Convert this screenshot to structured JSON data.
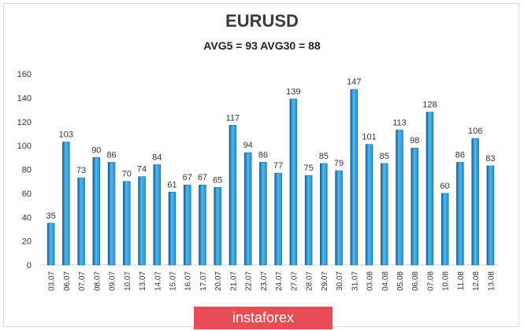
{
  "chart_data": {
    "type": "bar",
    "title": "EURUSD",
    "subtitle": "AVG5 = 93 AVG30 = 88",
    "categories": [
      "03.07",
      "06.07",
      "07.07",
      "08.07",
      "09.07",
      "10.07",
      "13.07",
      "14.07",
      "15.07",
      "16.07",
      "17.07",
      "20.07",
      "21.07",
      "22.07",
      "23.07",
      "24.07",
      "27.07",
      "28.07",
      "29.07",
      "30.07",
      "31.07",
      "03.08",
      "04.08",
      "05.08",
      "06.08",
      "07.08",
      "10.08",
      "11.08",
      "12.08",
      "13.08"
    ],
    "values": [
      35,
      103,
      73,
      90,
      86,
      70,
      74,
      84,
      61,
      67,
      67,
      65,
      117,
      94,
      86,
      77,
      139,
      75,
      85,
      79,
      147,
      101,
      85,
      113,
      98,
      128,
      60,
      86,
      106,
      83
    ],
    "ylim": [
      0,
      160
    ],
    "yticks": [
      0,
      20,
      40,
      60,
      80,
      100,
      120,
      140,
      160
    ],
    "grid": false,
    "data_labels": true,
    "colors": {
      "bar": "#1b8fd2",
      "bar_light": "#56b6ec",
      "bar_dark": "#0d5f94"
    }
  },
  "watermark": "instaforex"
}
